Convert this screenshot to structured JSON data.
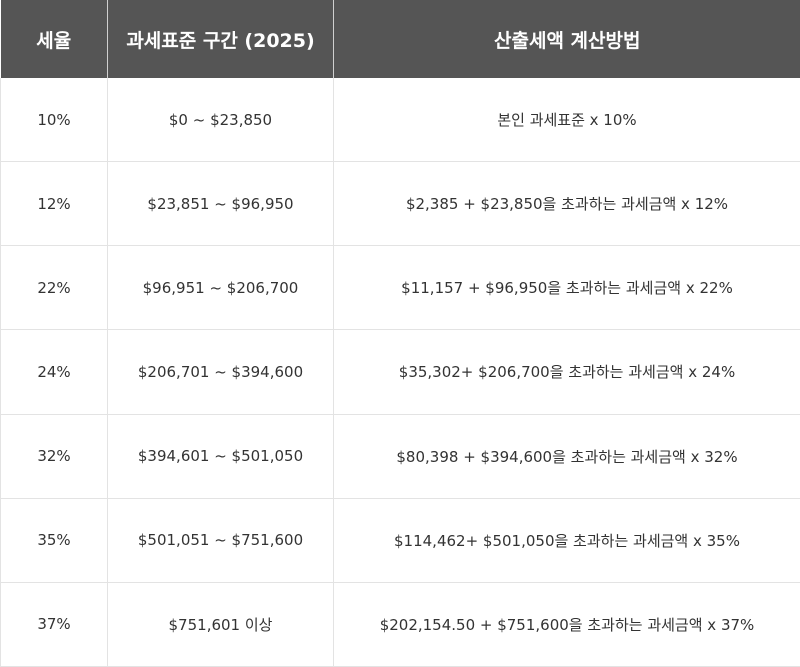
{
  "table": {
    "headers": [
      "세율",
      "과세표준 구간 (2025)",
      "산출세액 계산방법"
    ],
    "rows": [
      [
        "10%",
        "$0 ~ $23,850",
        "본인 과세표준 x 10%"
      ],
      [
        "12%",
        "$23,851 ~ $96,950",
        "$2,385 + $23,850을 초과하는 과세금액 x 12%"
      ],
      [
        "22%",
        "$96,951 ~ $206,700",
        "$11,157 + $96,950을 초과하는 과세금액 x 22%"
      ],
      [
        "24%",
        "$206,701 ~ $394,600",
        "$35,302+ $206,700을 초과하는 과세금액 x 24%"
      ],
      [
        "32%",
        "$394,601 ~ $501,050",
        "$80,398 + $394,600을 초과하는 과세금액 x 32%"
      ],
      [
        "35%",
        "$501,051 ~ $751,600",
        "$114,462+ $501,050을 초과하는 과세금액 x 35%"
      ],
      [
        "37%",
        "$751,601 이상",
        "$202,154.50 + $751,600을 초과하는 과세금액 x 37%"
      ]
    ]
  },
  "colors": {
    "header_bg": "#555555",
    "header_text": "#ffffff",
    "body_text": "#333333",
    "grid": "#e3e3e3"
  }
}
